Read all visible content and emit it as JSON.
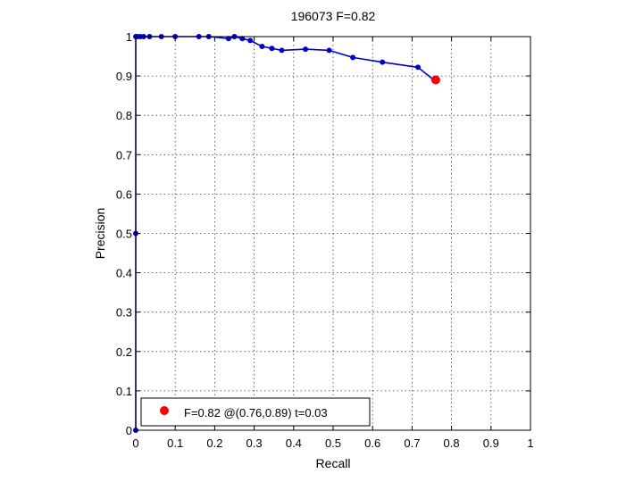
{
  "chart_data": {
    "type": "line",
    "title": "196073 F=0.82",
    "xlabel": "Recall",
    "ylabel": "Precision",
    "xlim": [
      0,
      1
    ],
    "ylim": [
      0,
      1
    ],
    "grid": true,
    "xticks": [
      "0",
      "0.1",
      "0.2",
      "0.3",
      "0.4",
      "0.5",
      "0.6",
      "0.7",
      "0.8",
      "0.9",
      "1"
    ],
    "yticks": [
      "0",
      "0.1",
      "0.2",
      "0.3",
      "0.4",
      "0.5",
      "0.6",
      "0.7",
      "0.8",
      "0.9",
      "1"
    ],
    "series": [
      {
        "color": "#0000cc",
        "marker": "dot",
        "x": [
          0.0,
          0.0,
          0.0,
          0.005,
          0.012,
          0.02,
          0.035,
          0.065,
          0.1,
          0.16,
          0.185,
          0.235,
          0.25,
          0.27,
          0.29,
          0.32,
          0.345,
          0.37,
          0.43,
          0.49,
          0.55,
          0.625,
          0.715,
          0.755
        ],
        "y": [
          0.0,
          0.5,
          1.0,
          1.0,
          1.0,
          1.0,
          1.0,
          1.0,
          1.0,
          1.0,
          1.0,
          0.995,
          1.0,
          0.995,
          0.99,
          0.975,
          0.97,
          0.965,
          0.968,
          0.965,
          0.947,
          0.935,
          0.922,
          0.89
        ]
      }
    ],
    "highlight": {
      "x": 0.76,
      "y": 0.89,
      "color": "#ff0000"
    },
    "legend": {
      "position": "bottom-left",
      "label": "F=0.82 @(0.76,0.89) t=0.03",
      "marker_color": "#ff0000"
    }
  }
}
